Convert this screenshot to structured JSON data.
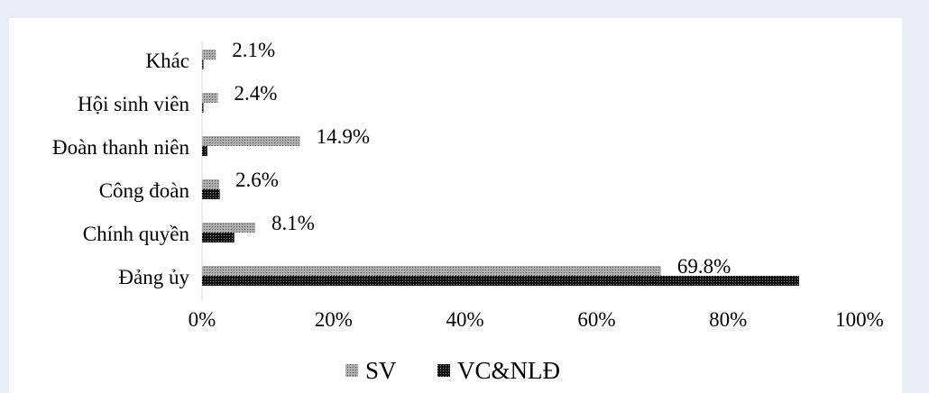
{
  "chart_data": {
    "type": "bar",
    "orientation": "horizontal",
    "categories": [
      "Khác",
      "Hội sinh viên",
      "Đoàn thanh niên",
      "Công đoàn",
      "Chính quyền",
      "Đảng ủy"
    ],
    "series": [
      {
        "name": "SV",
        "values": [
          2.1,
          2.4,
          14.9,
          2.6,
          8.1,
          69.8
        ],
        "data_labels": [
          "2.1%",
          "2.4%",
          "14.9%",
          "2.6%",
          "8.1%",
          "69.8%"
        ],
        "color": "#8c8c8c",
        "pattern": "light-dots"
      },
      {
        "name": "VC&NLĐ",
        "values": [
          0.2,
          0.2,
          0.8,
          2.7,
          4.9,
          90.8
        ],
        "color": "#111111",
        "pattern": "dark-dots"
      }
    ],
    "xlim": [
      0,
      100
    ],
    "xticks": [
      "0%",
      "20%",
      "40%",
      "60%",
      "80%",
      "100%"
    ],
    "grid": false,
    "legend": "bottom-center"
  }
}
